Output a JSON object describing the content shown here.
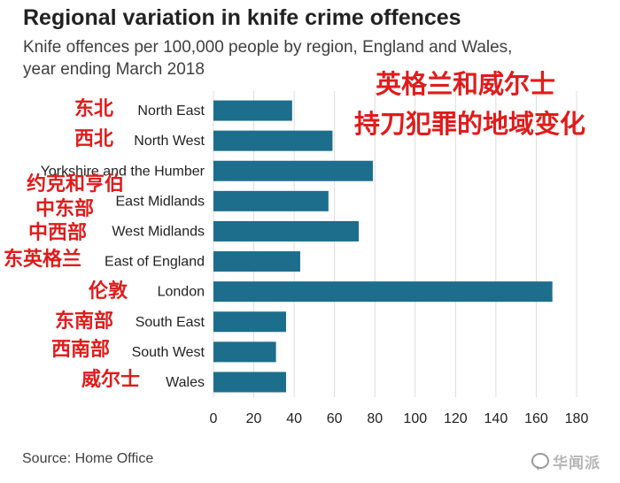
{
  "title": "Regional variation in knife crime offences",
  "subtitle_line1": "Knife offences per 100,000 people by region, England and Wales,",
  "subtitle_line2": "year ending March 2018",
  "overlay_title_line1": "英格兰和威尔士",
  "overlay_title_line2": "持刀犯罪的地域变化",
  "source": "Source: Home Office",
  "watermark": "华闻派",
  "watermark_icon": "wechat-bubble-icon",
  "bar_color": "#1c6e8c",
  "grid_color": "#dcdcdc",
  "overlay_color": "#e01b1b",
  "chart_data": {
    "type": "bar",
    "orientation": "horizontal",
    "categories": [
      "North East",
      "North West",
      "Yorkshire and the Humber",
      "East Midlands",
      "West Midlands",
      "East of England",
      "London",
      "South East",
      "South West",
      "Wales"
    ],
    "categories_zh": [
      "东北",
      "西北",
      "约克和亨伯",
      "中东部",
      "中西部",
      "东英格兰",
      "伦敦",
      "东南部",
      "西南部",
      "威尔士"
    ],
    "values": [
      39,
      59,
      79,
      57,
      72,
      43,
      168,
      36,
      31,
      36
    ],
    "xlim": [
      0,
      180
    ],
    "xticks": [
      0,
      20,
      40,
      60,
      80,
      100,
      120,
      140,
      160,
      180
    ],
    "grid": "vertical",
    "legend": "none"
  }
}
